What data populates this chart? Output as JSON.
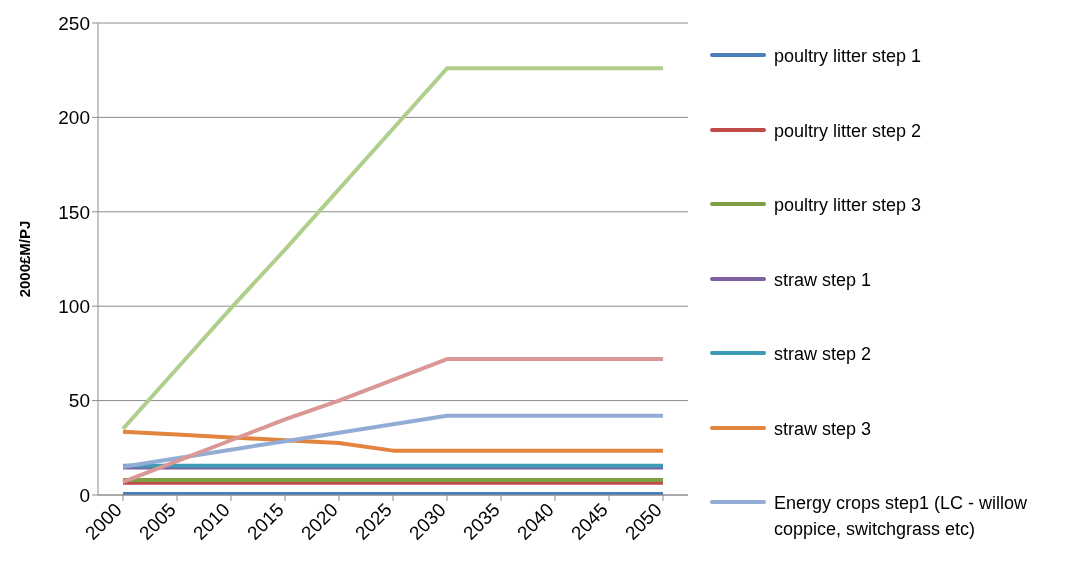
{
  "chart_data": {
    "type": "line",
    "ylabel": "2000£M/PJ",
    "categories": [
      "2000",
      "2005",
      "2010",
      "2015",
      "2020",
      "2025",
      "2030",
      "2035",
      "2040",
      "2045",
      "2050"
    ],
    "series": [
      {
        "name": "poultry litter step 1",
        "color": "#4a7ebb",
        "values": [
          0.5,
          0.5,
          0.5,
          0.5,
          0.5,
          0.5,
          0.5,
          0.5,
          0.5,
          0.5,
          0.5
        ]
      },
      {
        "name": "poultry litter step 2",
        "color": "#be4b48",
        "values": [
          6.5,
          6.5,
          6.5,
          6.5,
          6.5,
          6.5,
          6.5,
          6.5,
          6.5,
          6.5,
          6.5
        ]
      },
      {
        "name": "poultry litter step 3",
        "color": "#7f9f45",
        "values": [
          8,
          8,
          8,
          8,
          8,
          8,
          8,
          8,
          8,
          8,
          8
        ]
      },
      {
        "name": "straw step 1",
        "color": "#7d60a0",
        "values": [
          14.5,
          14.5,
          14.5,
          14.5,
          14.5,
          14.5,
          14.5,
          14.5,
          14.5,
          14.5,
          14.5
        ]
      },
      {
        "name": "straw step 2",
        "color": "#3d9bb3",
        "values": [
          15.5,
          15.5,
          15.5,
          15.5,
          15.5,
          15.5,
          15.5,
          15.5,
          15.5,
          15.5,
          15.5
        ]
      },
      {
        "name": "straw step 3",
        "color": "#e2843d",
        "values": [
          33.5,
          32,
          30.5,
          29,
          27.5,
          23.5,
          23.5,
          23.5,
          23.5,
          23.5,
          23.5
        ]
      },
      {
        "name": "Energy crops step1 (LC - willow coppice, switchgrass etc)",
        "color": "#93acd6",
        "values": [
          15,
          19.5,
          24,
          28.5,
          33,
          37.5,
          42,
          42,
          42,
          42,
          42
        ]
      },
      {
        "color": "#b1cf8c",
        "values": [
          35,
          67,
          99,
          130,
          162,
          194,
          226,
          226,
          226,
          226,
          226
        ]
      },
      {
        "color": "#d99795",
        "values": [
          7,
          18,
          29,
          40,
          50,
          61,
          72,
          72,
          72,
          72,
          72
        ]
      }
    ],
    "ylim": [
      0,
      250
    ],
    "yticks": [
      0,
      50,
      100,
      150,
      200,
      250
    ],
    "grid": "y",
    "legend": "right",
    "marker": "none",
    "line_style": "solid"
  }
}
